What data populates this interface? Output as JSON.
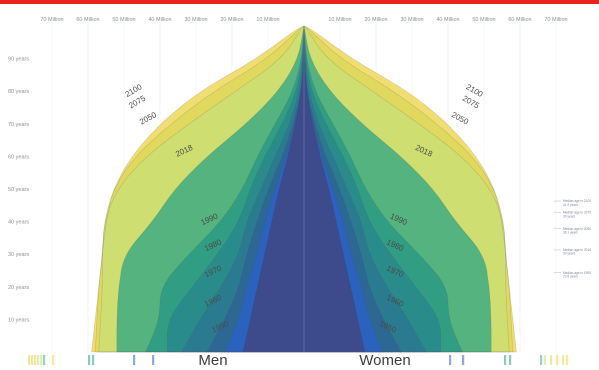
{
  "chart_data": {
    "type": "area",
    "x_ticks_left": [
      "70 Million",
      "60 Million",
      "50 Million",
      "40 Million",
      "30 Million",
      "20 Million",
      "10 Million"
    ],
    "x_ticks_right": [
      "10 Million",
      "20 Million",
      "30 Million",
      "40 Million",
      "50 Million",
      "60 Million",
      "70 Million"
    ],
    "y_ticks": [
      "90 years",
      "80 years",
      "70 years",
      "60 years",
      "50 years",
      "40 years",
      "30 years",
      "20 years",
      "10 years"
    ],
    "sex_labels": {
      "left": "Men",
      "right": "Women"
    },
    "series": [
      {
        "name": "2100",
        "color": "#ecd64e",
        "opacity": 0.8,
        "values": [
          [
            0,
            59
          ],
          [
            10,
            58
          ],
          [
            20,
            57
          ],
          [
            30,
            56
          ],
          [
            40,
            55.5
          ],
          [
            50,
            53
          ],
          [
            60,
            48
          ],
          [
            70,
            40
          ],
          [
            80,
            29
          ],
          [
            90,
            13
          ],
          [
            100,
            1
          ]
        ]
      },
      {
        "name": "2075",
        "color": "#dcd75a",
        "opacity": 0.8,
        "values": [
          [
            0,
            58
          ],
          [
            10,
            57.5
          ],
          [
            20,
            57
          ],
          [
            30,
            56
          ],
          [
            40,
            55
          ],
          [
            50,
            53
          ],
          [
            60,
            47
          ],
          [
            70,
            37
          ],
          [
            80,
            25
          ],
          [
            90,
            10
          ],
          [
            100,
            0.5
          ]
        ]
      },
      {
        "name": "2050",
        "color": "#c9de74",
        "opacity": 0.8,
        "values": [
          [
            0,
            57
          ],
          [
            10,
            56.5
          ],
          [
            20,
            56
          ],
          [
            30,
            56
          ],
          [
            40,
            55.5
          ],
          [
            50,
            52
          ],
          [
            60,
            44
          ],
          [
            70,
            32
          ],
          [
            80,
            19
          ],
          [
            90,
            6
          ],
          [
            100,
            0.3
          ]
        ]
      },
      {
        "name": "2018",
        "color": "#47ae7f",
        "opacity": 0.9,
        "values": [
          [
            0,
            52
          ],
          [
            10,
            52
          ],
          [
            20,
            51.5
          ],
          [
            30,
            50
          ],
          [
            40,
            42
          ],
          [
            50,
            36
          ],
          [
            60,
            27
          ],
          [
            70,
            16
          ],
          [
            80,
            7
          ],
          [
            90,
            1.5
          ],
          [
            100,
            0.05
          ]
        ]
      },
      {
        "name": "1990",
        "color": "#2f9c84",
        "opacity": 0.95,
        "values": [
          [
            0,
            44
          ],
          [
            10,
            40
          ],
          [
            20,
            40
          ],
          [
            30,
            32
          ],
          [
            40,
            23
          ],
          [
            50,
            17
          ],
          [
            60,
            13
          ],
          [
            70,
            8
          ],
          [
            80,
            3
          ],
          [
            90,
            0.6
          ],
          [
            100,
            0.02
          ]
        ]
      },
      {
        "name": "1980",
        "color": "#2a8b8a",
        "opacity": 0.95,
        "values": [
          [
            0,
            38
          ],
          [
            10,
            38
          ],
          [
            20,
            31
          ],
          [
            30,
            24
          ],
          [
            40,
            18
          ],
          [
            50,
            15
          ],
          [
            60,
            11
          ],
          [
            70,
            6
          ],
          [
            80,
            2
          ],
          [
            90,
            0.4
          ],
          [
            100,
            0.01
          ]
        ]
      },
      {
        "name": "1970",
        "color": "#2b7a90",
        "opacity": 0.95,
        "values": [
          [
            0,
            34
          ],
          [
            10,
            29
          ],
          [
            20,
            23
          ],
          [
            30,
            18
          ],
          [
            40,
            16
          ],
          [
            50,
            12
          ],
          [
            60,
            8
          ],
          [
            70,
            4
          ],
          [
            80,
            1.3
          ],
          [
            90,
            0.3
          ],
          [
            100,
            0.01
          ]
        ]
      },
      {
        "name": "1960",
        "color": "#2d6694",
        "opacity": 0.95,
        "values": [
          [
            0,
            27
          ],
          [
            10,
            22
          ],
          [
            20,
            18
          ],
          [
            30,
            16
          ],
          [
            40,
            13
          ],
          [
            50,
            10
          ],
          [
            60,
            6
          ],
          [
            70,
            3
          ],
          [
            80,
            0.8
          ],
          [
            90,
            0.2
          ],
          [
            100,
            0
          ]
        ]
      },
      {
        "name": "1950",
        "color": "#2a62c0",
        "opacity": 0.95,
        "values": [
          [
            0,
            22
          ],
          [
            10,
            18
          ],
          [
            20,
            16
          ],
          [
            30,
            13
          ],
          [
            40,
            11
          ],
          [
            50,
            8
          ],
          [
            60,
            5
          ],
          [
            70,
            2.2
          ],
          [
            80,
            0.6
          ],
          [
            90,
            0.1
          ],
          [
            100,
            0
          ]
        ]
      },
      {
        "name": "",
        "color": "#3d4a8c",
        "opacity": 1,
        "values": [
          [
            0,
            17
          ],
          [
            10,
            15
          ],
          [
            20,
            13
          ],
          [
            30,
            11
          ],
          [
            40,
            9
          ],
          [
            50,
            7
          ],
          [
            60,
            4.5
          ],
          [
            70,
            2.5
          ],
          [
            80,
            0.8
          ],
          [
            90,
            0.1
          ],
          [
            100,
            0
          ]
        ]
      }
    ],
    "year_labels": [
      {
        "text": "2100",
        "age": 79.5,
        "millions": 47,
        "rotate": -30
      },
      {
        "text": "2075",
        "age": 76,
        "millions": 46,
        "rotate": -30
      },
      {
        "text": "2050",
        "age": 71,
        "millions": 43,
        "rotate": -28
      },
      {
        "text": "2018",
        "age": 61,
        "millions": 33,
        "rotate": -25
      },
      {
        "text": "1990",
        "age": 40,
        "millions": 26,
        "rotate": -25
      },
      {
        "text": "1980",
        "age": 32,
        "millions": 25,
        "rotate": -25
      },
      {
        "text": "1970",
        "age": 24,
        "millions": 25,
        "rotate": -25
      },
      {
        "text": "1960",
        "age": 15,
        "millions": 25,
        "rotate": -25
      },
      {
        "text": "1950",
        "age": 7,
        "millions": 23,
        "rotate": -25
      }
    ],
    "side_notes": [
      {
        "lines": [
          "Median age in 2100",
          "41.9 years"
        ],
        "age": 46
      },
      {
        "lines": [
          "Median age in 2075",
          "39 years"
        ],
        "age": 42.5
      },
      {
        "lines": [
          "Median age in 2050",
          "36.1 years"
        ],
        "age": 37.5
      },
      {
        "lines": [
          "Median age in 2018",
          "30 years"
        ],
        "age": 31
      },
      {
        "lines": [
          "Median age in 1950",
          "23.6 years"
        ],
        "age": 24
      }
    ],
    "age_range": [
      0,
      100
    ],
    "population_range_millions": [
      0,
      72
    ]
  }
}
